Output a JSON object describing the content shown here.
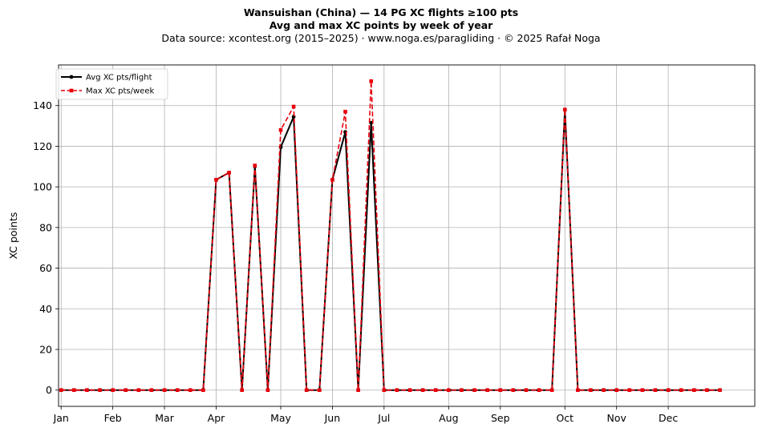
{
  "header": {
    "title_line1": "Wansuishan (China)  —  14 PG XC flights ≥100 pts",
    "title_line2": "Avg and max XC points by week of year",
    "subtitle": "Data source: xcontest.org (2015–2025)  ·  www.noga.es/paragliding  ·  © 2025 Rafał Noga"
  },
  "chart_data": {
    "type": "line",
    "title": "Wansuishan (China)  —  14 PG XC flights ≥100 pts",
    "subtitle": "Avg and max XC points by week of year",
    "xlabel": "",
    "ylabel": "XC points",
    "xlim": [
      -0.2,
      53.7
    ],
    "ylim": [
      -8,
      160
    ],
    "grid": true,
    "legend_position": "top-left",
    "x_ticks": [
      {
        "label": "Jan",
        "week": 0
      },
      {
        "label": "Feb",
        "week": 4
      },
      {
        "label": "Mar",
        "week": 8
      },
      {
        "label": "Apr",
        "week": 12
      },
      {
        "label": "May",
        "week": 17
      },
      {
        "label": "Jun",
        "week": 21
      },
      {
        "label": "Jul",
        "week": 25
      },
      {
        "label": "Aug",
        "week": 30
      },
      {
        "label": "Sep",
        "week": 34
      },
      {
        "label": "Oct",
        "week": 39
      },
      {
        "label": "Nov",
        "week": 43
      },
      {
        "label": "Dec",
        "week": 47
      }
    ],
    "y_ticks": [
      0,
      20,
      40,
      60,
      80,
      100,
      120,
      140
    ],
    "x": [
      0,
      1,
      2,
      3,
      4,
      5,
      6,
      7,
      8,
      9,
      10,
      11,
      12,
      13,
      14,
      15,
      16,
      17,
      18,
      19,
      20,
      21,
      22,
      23,
      24,
      25,
      26,
      27,
      28,
      29,
      30,
      31,
      32,
      33,
      34,
      35,
      36,
      37,
      38,
      39,
      40,
      41,
      42,
      43,
      44,
      45,
      46,
      47,
      48,
      49,
      50,
      51
    ],
    "series": [
      {
        "name": "Avg XC pts/flight",
        "color": "#000000",
        "style": "solid",
        "marker": "circle",
        "values": [
          0,
          0,
          0,
          0,
          0,
          0,
          0,
          0,
          0,
          0,
          0,
          0,
          103.5,
          107,
          0,
          110,
          0,
          119.5,
          134.5,
          0,
          0,
          103.5,
          127,
          0,
          131.5,
          0,
          0,
          0,
          0,
          0,
          0,
          0,
          0,
          0,
          0,
          0,
          0,
          0,
          0,
          138,
          0,
          0,
          0,
          0,
          0,
          0,
          0,
          0,
          0,
          0,
          0,
          0
        ]
      },
      {
        "name": "Max XC pts/week",
        "color": "#e8000b",
        "style": "dashed",
        "marker": "square",
        "values": [
          0,
          0,
          0,
          0,
          0,
          0,
          0,
          0,
          0,
          0,
          0,
          0,
          103.5,
          107,
          0,
          110.5,
          0,
          128,
          139.5,
          0,
          0,
          103.5,
          137,
          0,
          152,
          0,
          0,
          0,
          0,
          0,
          0,
          0,
          0,
          0,
          0,
          0,
          0,
          0,
          0,
          138,
          0,
          0,
          0,
          0,
          0,
          0,
          0,
          0,
          0,
          0,
          0,
          0
        ]
      }
    ]
  }
}
